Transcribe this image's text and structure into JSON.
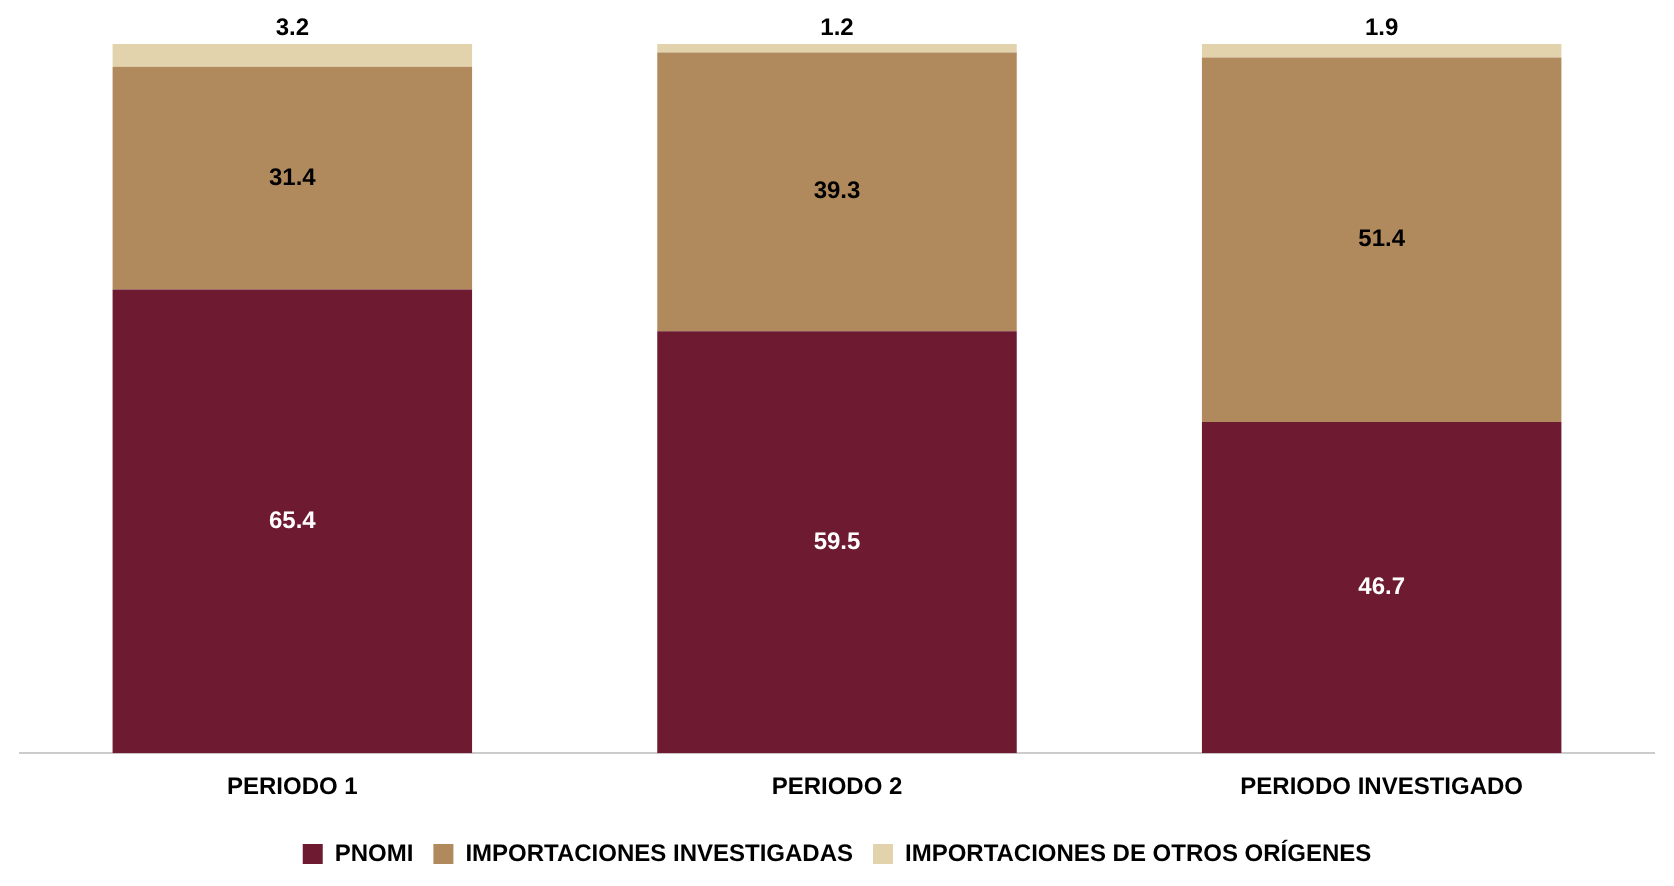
{
  "chart_data": {
    "type": "bar",
    "stacked": true,
    "categories": [
      "PERIODO 1",
      "PERIODO 2",
      "PERIODO INVESTIGADO"
    ],
    "series": [
      {
        "name": "PNOMI",
        "color": "#6e1a30",
        "values": [
          65.4,
          59.5,
          46.7
        ]
      },
      {
        "name": "IMPORTACIONES INVESTIGADAS",
        "color": "#b08a5c",
        "values": [
          31.4,
          39.3,
          51.4
        ]
      },
      {
        "name": "IMPORTACIONES DE OTROS ORÍGENES",
        "color": "#e3d3ad",
        "values": [
          3.2,
          1.2,
          1.9
        ]
      }
    ],
    "data_labels": true,
    "legend": "bottom",
    "tick_labels": "x"
  }
}
